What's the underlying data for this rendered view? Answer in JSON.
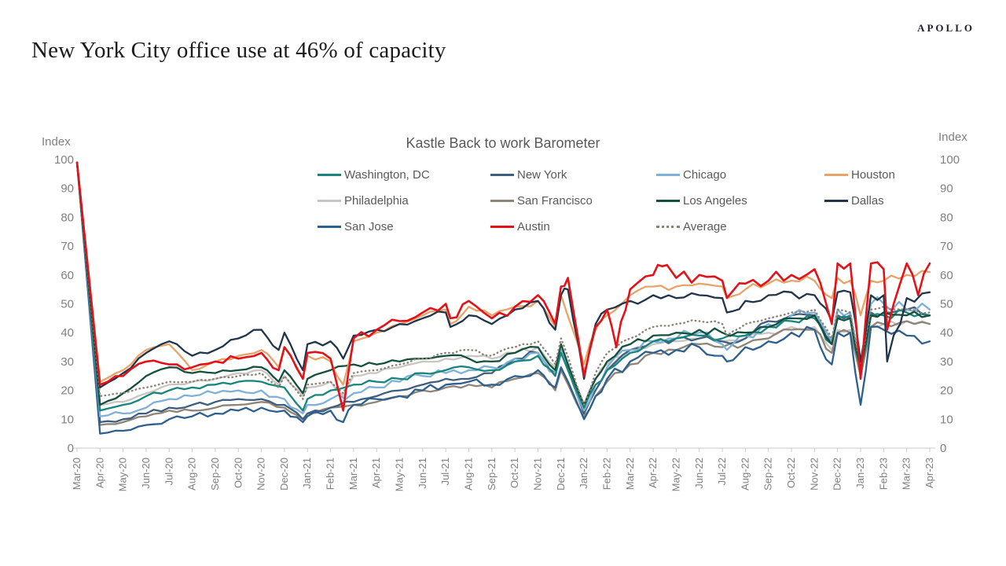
{
  "header": {
    "logo": "APOLLO",
    "title": "New York City office use at 46% of capacity"
  },
  "chart_data": {
    "type": "line",
    "title": "Kastle Back to work Barometer",
    "y_axis_label_left": "Index",
    "y_axis_label_right": "Index",
    "ylim": [
      0,
      100
    ],
    "y_ticks": [
      0,
      10,
      20,
      30,
      40,
      50,
      60,
      70,
      80,
      90,
      100
    ],
    "grid": false,
    "legend_position": "top",
    "categories": [
      "Mar-20",
      "Apr-20",
      "May-20",
      "Jun-20",
      "Jul-20",
      "Aug-20",
      "Sep-20",
      "Oct-20",
      "Nov-20",
      "Dec-20",
      "Jan-21",
      "Feb-21",
      "Mar-21",
      "Apr-21",
      "May-21",
      "Jun-21",
      "Jul-21",
      "Aug-21",
      "Sep-21",
      "Oct-21",
      "Nov-21",
      "Dec-21",
      "Jan-22",
      "Feb-22",
      "Mar-22",
      "Apr-22",
      "May-22",
      "Jun-22",
      "Jul-22",
      "Aug-22",
      "Sep-22",
      "Oct-22",
      "Nov-22",
      "Dec-22",
      "Jan-23",
      "Feb-23",
      "Mar-23",
      "Apr-23"
    ],
    "series": [
      {
        "name": "Washington, DC",
        "color": "#17857b",
        "style": "solid",
        "values": [
          99,
          13,
          15,
          18,
          20,
          21,
          22,
          23,
          23,
          21,
          17,
          20,
          22,
          23,
          24,
          26,
          27,
          28,
          27,
          30,
          32,
          33,
          14,
          27,
          33,
          37,
          38,
          39,
          38,
          39,
          42,
          44,
          45,
          45,
          27,
          46,
          47,
          46
        ]
      },
      {
        "name": "New York",
        "color": "#3f5e7f",
        "style": "solid",
        "values": [
          99,
          9,
          10,
          12,
          14,
          15,
          16,
          17,
          17,
          15,
          12,
          14,
          16,
          18,
          20,
          22,
          24,
          24,
          26,
          31,
          33,
          34,
          12,
          27,
          34,
          37,
          38,
          38,
          37,
          38,
          44,
          46,
          46,
          46,
          27,
          47,
          48,
          46
        ]
      },
      {
        "name": "Chicago",
        "color": "#7fb0d8",
        "style": "solid",
        "values": [
          99,
          11,
          12,
          14,
          17,
          18,
          19,
          20,
          20,
          17,
          15,
          17,
          19,
          21,
          23,
          25,
          26,
          27,
          28,
          31,
          33,
          34,
          13,
          28,
          34,
          37,
          38,
          40,
          36,
          39,
          43,
          46,
          47,
          48,
          26,
          50,
          48,
          48
        ]
      },
      {
        "name": "Houston",
        "color": "#e8a369",
        "style": "solid",
        "values": [
          99,
          23,
          27,
          34,
          36,
          27,
          30,
          32,
          34,
          35,
          32,
          30,
          37,
          40,
          43,
          46,
          48,
          49,
          46,
          49,
          51,
          53,
          29,
          46,
          53,
          56,
          56,
          57,
          56,
          55,
          57,
          58,
          58,
          59,
          46,
          58,
          60,
          61
        ]
      },
      {
        "name": "Philadelphia",
        "color": "#c9c5c0",
        "style": "solid",
        "values": [
          99,
          15,
          16,
          19,
          22,
          23,
          24,
          26,
          27,
          25,
          21,
          23,
          25,
          26,
          28,
          30,
          31,
          32,
          31,
          33,
          35,
          36,
          14,
          29,
          34,
          36,
          37,
          38,
          37,
          38,
          40,
          42,
          42,
          41,
          26,
          43,
          44,
          43
        ]
      },
      {
        "name": "San Francisco",
        "color": "#8e8477",
        "style": "solid",
        "values": [
          99,
          8,
          9,
          11,
          13,
          13,
          14,
          15,
          16,
          14,
          12,
          14,
          15,
          16,
          18,
          20,
          21,
          22,
          21,
          24,
          26,
          27,
          11,
          23,
          29,
          33,
          34,
          36,
          35,
          36,
          38,
          41,
          41,
          40,
          25,
          43,
          44,
          43
        ]
      },
      {
        "name": "Los Angeles",
        "color": "#14503c",
        "style": "solid",
        "values": [
          99,
          15,
          19,
          25,
          28,
          26,
          26,
          27,
          28,
          27,
          24,
          27,
          29,
          29,
          30,
          31,
          32,
          31,
          30,
          33,
          35,
          36,
          15,
          30,
          36,
          39,
          40,
          41,
          40,
          40,
          42,
          45,
          46,
          45,
          28,
          47,
          46,
          46
        ]
      },
      {
        "name": "Dallas",
        "color": "#20344a",
        "style": "solid",
        "values": [
          99,
          21,
          26,
          33,
          37,
          32,
          34,
          38,
          41,
          40,
          36,
          37,
          39,
          41,
          43,
          45,
          47,
          46,
          43,
          48,
          51,
          53,
          24,
          48,
          51,
          53,
          52,
          53,
          52,
          51,
          53,
          54,
          53,
          54,
          30,
          53,
          52,
          54
        ]
      },
      {
        "name": "San Jose",
        "color": "#2e608e",
        "style": "solid",
        "values": [
          99,
          5,
          6,
          8,
          10,
          11,
          12,
          13,
          14,
          13,
          11,
          13,
          15,
          17,
          18,
          20,
          22,
          23,
          22,
          25,
          27,
          28,
          10,
          24,
          30,
          33,
          34,
          35,
          32,
          35,
          37,
          40,
          41,
          40,
          15,
          41,
          39,
          37
        ]
      },
      {
        "name": "Austin",
        "color": "#e31219",
        "style": "solid",
        "values": [
          99,
          22,
          25,
          30,
          29,
          28,
          30,
          31,
          33,
          35,
          33,
          31,
          38,
          41,
          44,
          47,
          50,
          51,
          45,
          49,
          53,
          56,
          25,
          48,
          55,
          60,
          59,
          60,
          58,
          57,
          58,
          60,
          62,
          64,
          24,
          62,
          64,
          64
        ]
      },
      {
        "name": "Average",
        "color": "#8c8175",
        "style": "dotted",
        "values": [
          99,
          18,
          19,
          21,
          23,
          23,
          24,
          25,
          26,
          25,
          22,
          23,
          26,
          27,
          29,
          31,
          33,
          34,
          32,
          35,
          37,
          38,
          15,
          33,
          38,
          42,
          43,
          44,
          43,
          43,
          45,
          47,
          48,
          48,
          29,
          49,
          48,
          47
        ]
      }
    ],
    "events": [
      {
        "at": 8.75,
        "values": {
          "Dallas": 34,
          "Houston": 28,
          "Austin": 27,
          "Average": 21,
          "Los Angeles": 23,
          "Philadelphia": 22
        }
      },
      {
        "at": 9.8,
        "values": {
          "Dallas": 27,
          "Houston": 24,
          "Austin": 24,
          "Average": 17,
          "Los Angeles": 19,
          "Philadelphia": 18,
          "Washington, DC": 13,
          "Chicago": 12,
          "New York": 10,
          "San Francisco": 10,
          "San Jose": 9
        }
      },
      {
        "at": 11.55,
        "values": {
          "Austin": 13,
          "Houston": 22,
          "Dallas": 31,
          "San Jose": 9,
          "Philadelphia": 18,
          "Average": 19
        }
      },
      {
        "at": 16.2,
        "values": {
          "Austin": 45,
          "Houston": 43,
          "Dallas": 42
        }
      },
      {
        "at": 20.75,
        "values": {
          "Austin": 43,
          "Dallas": 41,
          "Houston": 42,
          "Average": 29,
          "Los Angeles": 27,
          "Washington, DC": 25,
          "New York": 26,
          "Chicago": 26,
          "Philadelphia": 28,
          "San Francisco": 20,
          "San Jose": 21
        }
      },
      {
        "at": 21.3,
        "values": {
          "Austin": 59,
          "Dallas": 55
        }
      },
      {
        "at": 22.5,
        "values": {
          "Austin": 42,
          "Dallas": 43,
          "Houston": 41,
          "Average": 26,
          "Los Angeles": 24,
          "Washington, DC": 22,
          "Chicago": 22,
          "New York": 20,
          "Philadelphia": 24,
          "San Francisco": 18,
          "San Jose": 18
        }
      },
      {
        "at": 23.4,
        "values": {
          "Austin": 35
        }
      },
      {
        "at": 25.4,
        "values": {
          "Austin": 63
        }
      },
      {
        "at": 28.2,
        "values": {
          "Austin": 52,
          "Houston": 52,
          "Dallas": 47,
          "Chicago": 34,
          "San Jose": 30,
          "Average": 39
        }
      },
      {
        "at": 32.75,
        "values": {
          "Austin": 43,
          "Dallas": 44,
          "Houston": 52,
          "Average": 38,
          "Los Angeles": 36,
          "Washington, DC": 36,
          "New York": 37,
          "Chicago": 37,
          "Philadelphia": 34,
          "San Francisco": 33,
          "San Jose": 29
        }
      },
      {
        "at": 33.55,
        "values": {
          "Austin": 64,
          "Dallas": 54,
          "Houston": 58,
          "Average": 47,
          "New York": 46,
          "Chicago": 47,
          "Washington, DC": 45,
          "Los Angeles": 45,
          "Philadelphia": 41,
          "San Francisco": 40,
          "San Jose": 40
        }
      },
      {
        "at": 34.45,
        "values": {
          "Austin": 64,
          "Dallas": 53,
          "Houston": 58,
          "Average": 48,
          "New York": 47,
          "Chicago": 50,
          "Washington, DC": 46,
          "Los Angeles": 46,
          "Philadelphia": 42,
          "San Francisco": 42,
          "San Jose": 42
        }
      },
      {
        "at": 35.15,
        "values": {
          "Austin": 41,
          "Dallas": 30
        }
      },
      {
        "at": 36.5,
        "values": {
          "Austin": 53
        }
      }
    ]
  }
}
